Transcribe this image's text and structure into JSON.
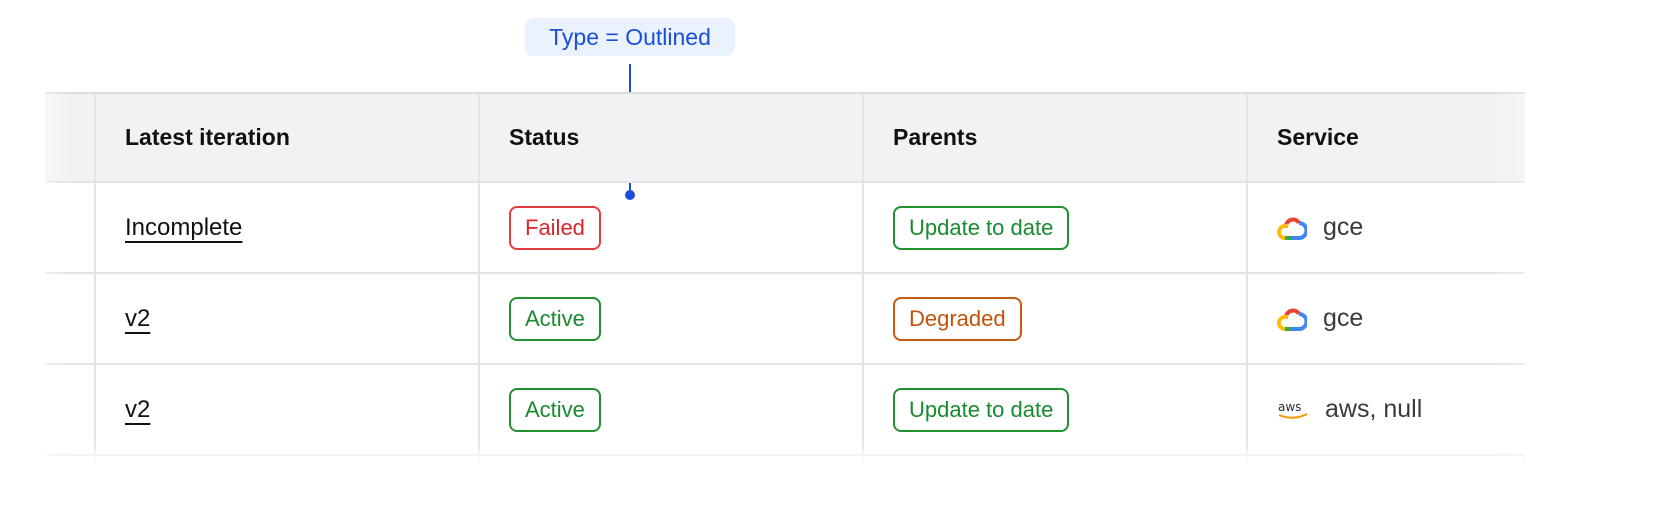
{
  "annotation": {
    "label": "Type = Outlined",
    "color": "#1b4fd8"
  },
  "columns": [
    "Latest iteration",
    "Status",
    "Parents",
    "Service"
  ],
  "rows": [
    {
      "iteration": "Incomplete",
      "status": "Failed",
      "status_kind": "error",
      "parents": "Update to date",
      "parents_kind": "success",
      "service_icon": "google-cloud-icon",
      "service": "gce"
    },
    {
      "iteration": "v2",
      "status": "Active",
      "status_kind": "success",
      "parents": "Degraded",
      "parents_kind": "warning",
      "service_icon": "google-cloud-icon",
      "service": "gce"
    },
    {
      "iteration": "v2",
      "status": "Active",
      "status_kind": "success",
      "parents": "Update to date",
      "parents_kind": "success",
      "service_icon": "aws-icon",
      "service": "aws, null"
    }
  ],
  "colors": {
    "error": "#d9262b",
    "success": "#198a2f",
    "warning": "#c2530a"
  }
}
